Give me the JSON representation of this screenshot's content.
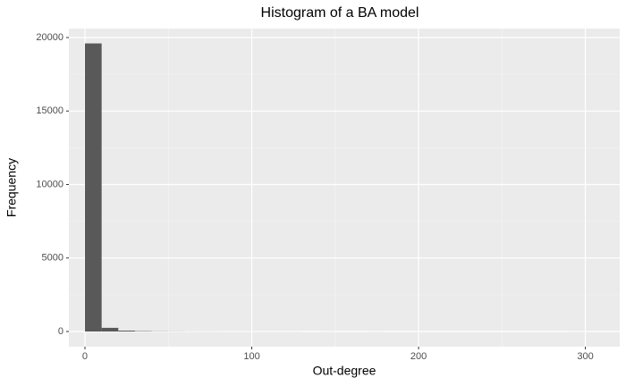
{
  "chart_data": {
    "type": "histogram",
    "title": "Histogram of a BA model",
    "x_label": "Out-degree",
    "y_label": "Frequency",
    "bins": [
      0,
      10,
      20,
      30,
      40,
      50,
      60,
      70,
      80,
      90,
      100,
      110,
      120,
      130,
      140,
      150,
      160,
      170,
      180,
      190,
      200,
      210,
      220,
      230,
      240,
      250,
      260,
      270,
      280,
      290,
      300
    ],
    "counts": [
      19600,
      250,
      60,
      25,
      12,
      7,
      4,
      3,
      2,
      2,
      1,
      1,
      1,
      0,
      1,
      0,
      0,
      1,
      0,
      0,
      0,
      0,
      0,
      0,
      0,
      0,
      0,
      0,
      0,
      1
    ],
    "color": "#595959",
    "xlim": [
      -9.65,
      320.6
    ],
    "ylim": [
      -1033,
      20608
    ],
    "xticks": [
      0,
      100,
      200,
      300
    ],
    "yticks": [
      0,
      5000,
      10000,
      15000,
      20000
    ],
    "xminor": [
      50,
      150,
      250
    ],
    "yminor": [
      2500,
      7500,
      12500,
      17500
    ],
    "grid": true
  }
}
